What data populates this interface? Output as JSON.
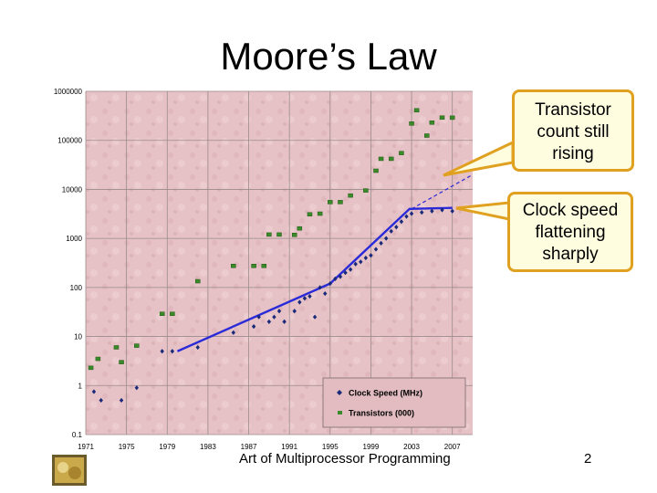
{
  "slide": {
    "title": "Moore’s Law",
    "footer": "Art of Multiprocessor Programming",
    "page_number": "2"
  },
  "callouts": {
    "transistor": [
      "Transistor",
      "count still",
      "rising"
    ],
    "clock": [
      "Clock speed",
      "flattening",
      "sharply"
    ]
  },
  "colors": {
    "plot_background": "#e6c2c6",
    "clock_series": "#1a2a7a",
    "transistor_series": "#3a8a2a",
    "trend_line": "#2a2ad8",
    "callout_fill": "#fffde0",
    "callout_border": "#e0a020"
  },
  "chart_data": {
    "type": "scatter",
    "title": "",
    "xlabel": "",
    "ylabel": "",
    "y_scale": "log",
    "xlim": [
      1971,
      2009
    ],
    "ylim": [
      0.1,
      1000000
    ],
    "x_ticks": [
      "1971",
      "1975",
      "1979",
      "1983",
      "1987",
      "1991",
      "1995",
      "1999",
      "2003",
      "2007"
    ],
    "y_ticks": [
      "0.1",
      "1",
      "10",
      "100",
      "1000",
      "10000",
      "100000",
      "1000000"
    ],
    "grid": true,
    "legend_position": "bottom-right",
    "series": [
      {
        "name": "Clock Speed (MHz)",
        "marker": "diamond",
        "points": [
          [
            1971.8,
            0.75
          ],
          [
            1972.5,
            0.5
          ],
          [
            1974.5,
            0.5
          ],
          [
            1976.0,
            0.9
          ],
          [
            1978.5,
            5
          ],
          [
            1979.5,
            5
          ],
          [
            1982.0,
            6
          ],
          [
            1985.5,
            12
          ],
          [
            1987.5,
            16
          ],
          [
            1988.0,
            25
          ],
          [
            1989.0,
            20
          ],
          [
            1989.5,
            25
          ],
          [
            1990.0,
            33
          ],
          [
            1990.5,
            20
          ],
          [
            1991.5,
            33
          ],
          [
            1992.0,
            50
          ],
          [
            1992.5,
            60
          ],
          [
            1993.0,
            66
          ],
          [
            1993.5,
            25
          ],
          [
            1994.0,
            100
          ],
          [
            1994.5,
            75
          ],
          [
            1995.0,
            120
          ],
          [
            1995.5,
            150
          ],
          [
            1996.0,
            166
          ],
          [
            1996.5,
            200
          ],
          [
            1997.0,
            233
          ],
          [
            1997.5,
            300
          ],
          [
            1998.0,
            333
          ],
          [
            1998.5,
            400
          ],
          [
            1999.0,
            450
          ],
          [
            1999.5,
            600
          ],
          [
            2000.0,
            800
          ],
          [
            2000.5,
            1000
          ],
          [
            2001.0,
            1400
          ],
          [
            2001.5,
            1700
          ],
          [
            2002.0,
            2200
          ],
          [
            2002.5,
            2800
          ],
          [
            2003.0,
            3200
          ],
          [
            2004.0,
            3400
          ],
          [
            2005.0,
            3600
          ],
          [
            2006.0,
            3800
          ],
          [
            2007.0,
            3600
          ]
        ]
      },
      {
        "name": "Transistors (000)",
        "marker": "square",
        "points": [
          [
            1971.5,
            2.3
          ],
          [
            1972.2,
            3.5
          ],
          [
            1974.0,
            6
          ],
          [
            1974.5,
            3
          ],
          [
            1976.0,
            6.5
          ],
          [
            1978.5,
            29
          ],
          [
            1979.5,
            29
          ],
          [
            1982.0,
            134
          ],
          [
            1985.5,
            275
          ],
          [
            1987.5,
            275
          ],
          [
            1988.5,
            275
          ],
          [
            1989.0,
            1200
          ],
          [
            1990.0,
            1200
          ],
          [
            1991.5,
            1180
          ],
          [
            1992.0,
            1600
          ],
          [
            1993.0,
            3100
          ],
          [
            1994.0,
            3200
          ],
          [
            1995.0,
            5500
          ],
          [
            1996.0,
            5500
          ],
          [
            1997.0,
            7500
          ],
          [
            1998.5,
            9500
          ],
          [
            1999.5,
            24000
          ],
          [
            2000.0,
            42000
          ],
          [
            2001.0,
            42000
          ],
          [
            2002.0,
            55000
          ],
          [
            2003.0,
            220000
          ],
          [
            2003.5,
            410000
          ],
          [
            2004.5,
            125000
          ],
          [
            2005.0,
            230000
          ],
          [
            2006.0,
            291000
          ],
          [
            2007.0,
            290000
          ]
        ]
      }
    ],
    "trend_lines": [
      {
        "series": "Clock Speed (MHz)",
        "points": [
          [
            1980,
            5
          ],
          [
            1995,
            120
          ],
          [
            2002.8,
            4000
          ],
          [
            2007,
            4200
          ]
        ]
      },
      {
        "series": "Transistors (000)",
        "style": "dashed",
        "points": [
          [
            2003,
            4000
          ],
          [
            2009,
            20000
          ]
        ]
      }
    ]
  }
}
